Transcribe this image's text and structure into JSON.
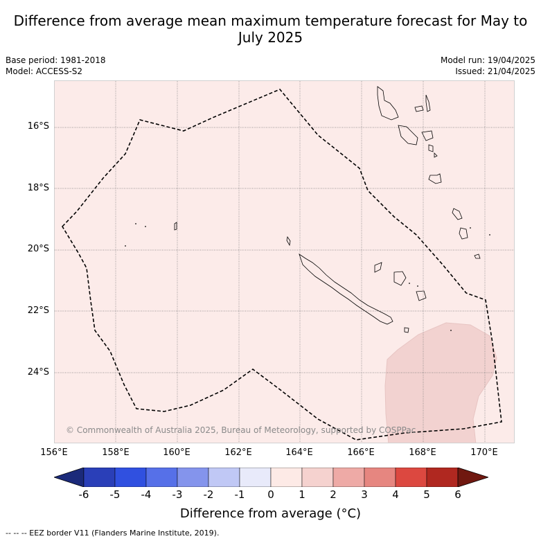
{
  "title": "Difference from average mean maximum temperature forecast for May to July 2025",
  "meta": {
    "base_period": "Base period: 1981-2018",
    "model": "Model: ACCESS-S2",
    "model_run": "Model run: 19/04/2025",
    "issued": "Issued: 21/04/2025"
  },
  "map": {
    "latitude_labels": [
      "16°S",
      "18°S",
      "20°S",
      "22°S",
      "24°S"
    ],
    "longitude_labels": [
      "156°E",
      "158°E",
      "160°E",
      "162°E",
      "164°E",
      "166°E",
      "168°E",
      "170°E"
    ],
    "background_color": "#fcebe9",
    "anomaly_patch_color": "#f2d2d0",
    "copyright": "© Commonwealth of Australia 2025, Bureau of Meteorology, supported by COSPPac"
  },
  "colorbar": {
    "ticks": [
      "-6",
      "-5",
      "-4",
      "-3",
      "-2",
      "-1",
      "0",
      "1",
      "2",
      "3",
      "4",
      "5",
      "6"
    ],
    "colors": [
      "#1b2a7a",
      "#2a3fb8",
      "#3050e0",
      "#5670e8",
      "#8494ec",
      "#c0c8f5",
      "#e8eafa",
      "#fdeae6",
      "#f5d2cf",
      "#eeaaa6",
      "#e68680",
      "#dc4840",
      "#b02820",
      "#701810"
    ],
    "label": "Difference from average (°C)"
  },
  "footnote": "--  --  -- EEZ border V11 (Flanders Marine Institute, 2019)."
}
